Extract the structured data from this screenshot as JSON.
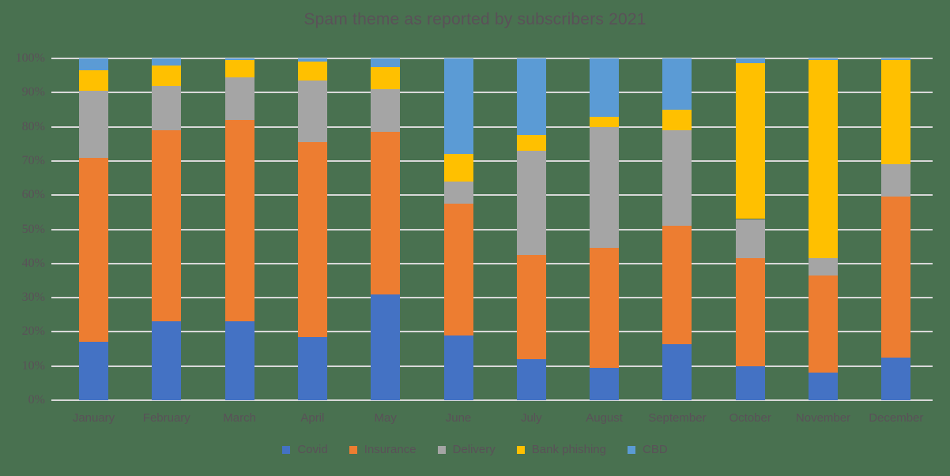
{
  "title": "Spam theme as reported by subscribers 2021",
  "colors": {
    "background": "#497150",
    "gridline": "#d9d9d9",
    "text": "#5a5158"
  },
  "chart_data": {
    "type": "bar",
    "subtype": "stacked-100-percent",
    "title": "Spam theme as reported by subscribers 2021",
    "xlabel": "",
    "ylabel": "",
    "ylim": [
      0,
      100
    ],
    "grid": true,
    "legend_position": "bottom",
    "y_ticks": [
      "0%",
      "10%",
      "20%",
      "30%",
      "40%",
      "50%",
      "60%",
      "70%",
      "80%",
      "90%",
      "100%"
    ],
    "categories": [
      "January",
      "February",
      "March",
      "April",
      "May",
      "June",
      "July",
      "August",
      "September",
      "October",
      "November",
      "December"
    ],
    "series": [
      {
        "name": "Covid",
        "color": "#4472C4",
        "values": [
          17,
          23,
          23,
          18.5,
          31,
          19,
          12,
          9.5,
          16.5,
          10,
          8,
          12.5
        ]
      },
      {
        "name": "Insurance",
        "color": "#ED7D31",
        "values": [
          54,
          56,
          59,
          57,
          47.5,
          38.5,
          30.5,
          35,
          34.5,
          31.5,
          28.5,
          47
        ]
      },
      {
        "name": "Delivery",
        "color": "#A5A5A5",
        "values": [
          19.5,
          13,
          12.5,
          18,
          12.5,
          6.5,
          30.5,
          35.5,
          28,
          11.5,
          5,
          9.5
        ]
      },
      {
        "name": "Bank phishing",
        "color": "#FFC000",
        "values": [
          6,
          6,
          5,
          5.5,
          6.5,
          8,
          4.5,
          3,
          6,
          45.5,
          58,
          30.5
        ]
      },
      {
        "name": "CBD",
        "color": "#5B9BD5",
        "values": [
          3.5,
          2,
          0.5,
          1,
          2.5,
          28,
          22.5,
          17,
          15,
          1.5,
          0.5,
          0.5
        ]
      }
    ]
  }
}
